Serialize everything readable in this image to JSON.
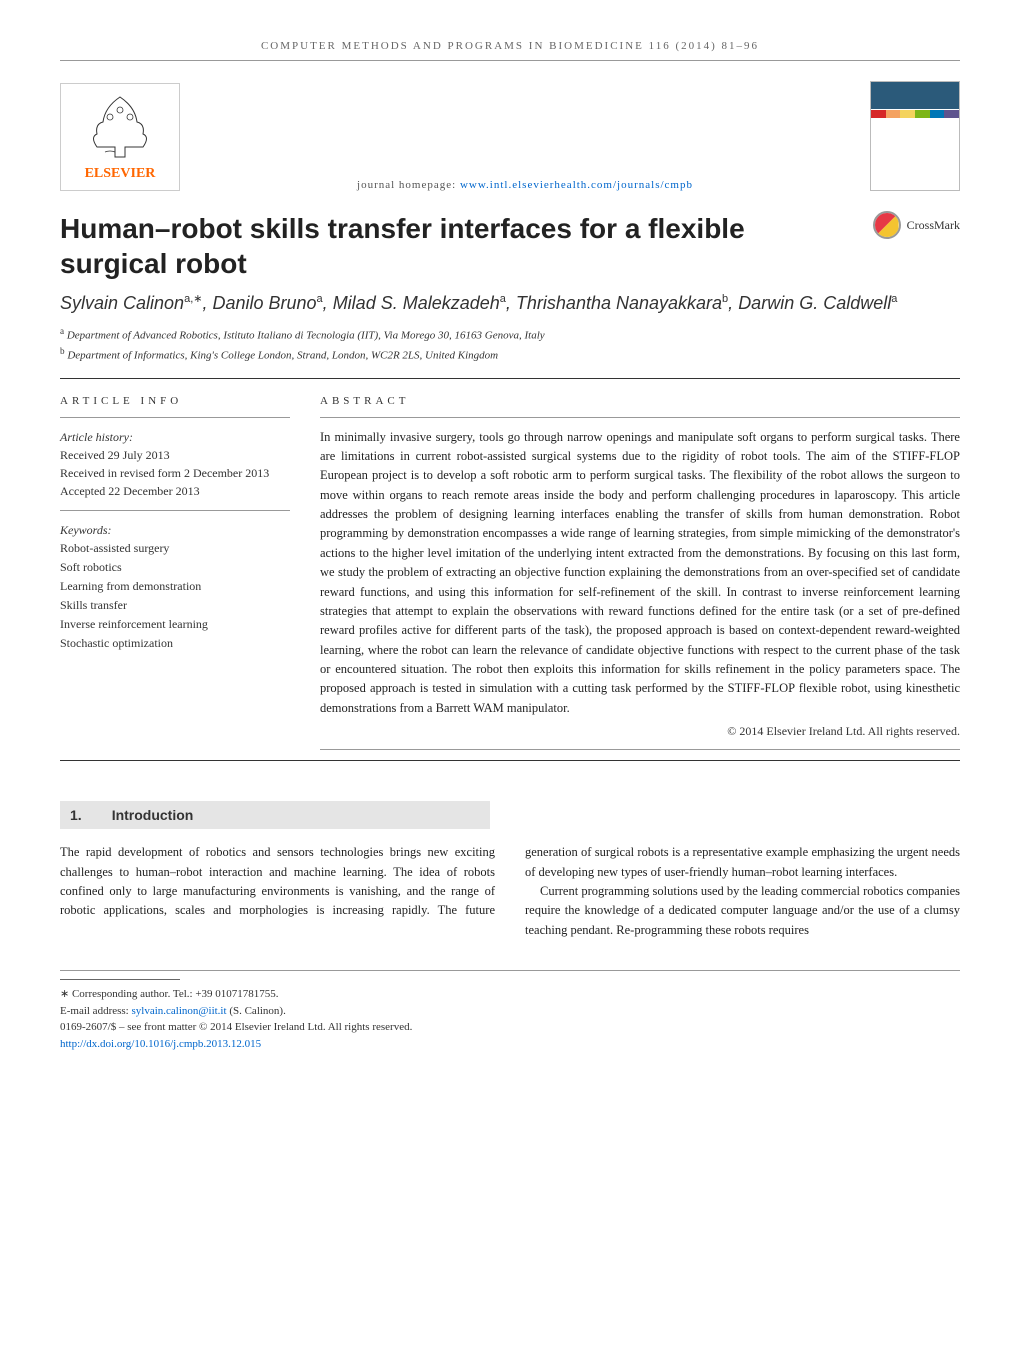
{
  "headerBar": "COMPUTER METHODS AND PROGRAMS IN BIOMEDICINE 116 (2014) 81–96",
  "publisher": {
    "name": "ELSEVIER",
    "color": "#ff6600"
  },
  "homepage": {
    "label": "journal homepage: ",
    "url": "www.intl.elsevierhealth.com/journals/cmpb"
  },
  "journalCover": {
    "stripeColors": [
      "#d62828",
      "#f4a261",
      "#f4d35e",
      "#7cb518",
      "#0077b6",
      "#5e548e"
    ]
  },
  "crossmark": "CrossMark",
  "title": "Human–robot skills transfer interfaces for a flexible surgical robot",
  "authors": [
    {
      "name": "Sylvain Calinon",
      "aff": "a,",
      "corr": "∗"
    },
    {
      "name": "Danilo Bruno",
      "aff": "a"
    },
    {
      "name": "Milad S. Malekzadeh",
      "aff": "a"
    },
    {
      "name": "Thrishantha Nanayakkara",
      "aff": "b"
    },
    {
      "name": "Darwin G. Caldwell",
      "aff": "a"
    }
  ],
  "affiliations": [
    {
      "key": "a",
      "text": "Department of Advanced Robotics, Istituto Italiano di Tecnologia (IIT), Via Morego 30, 16163 Genova, Italy"
    },
    {
      "key": "b",
      "text": "Department of Informatics, King's College London, Strand, London, WC2R 2LS, United Kingdom"
    }
  ],
  "articleInfo": {
    "heading": "ARTICLE INFO",
    "historyLabel": "Article history:",
    "history": [
      "Received 29 July 2013",
      "Received in revised form 2 December 2013",
      "Accepted 22 December 2013"
    ],
    "keywordsLabel": "Keywords:",
    "keywords": [
      "Robot-assisted surgery",
      "Soft robotics",
      "Learning from demonstration",
      "Skills transfer",
      "Inverse reinforcement learning",
      "Stochastic optimization"
    ]
  },
  "abstract": {
    "heading": "ABSTRACT",
    "text": "In minimally invasive surgery, tools go through narrow openings and manipulate soft organs to perform surgical tasks. There are limitations in current robot-assisted surgical systems due to the rigidity of robot tools. The aim of the STIFF-FLOP European project is to develop a soft robotic arm to perform surgical tasks. The flexibility of the robot allows the surgeon to move within organs to reach remote areas inside the body and perform challenging procedures in laparoscopy. This article addresses the problem of designing learning interfaces enabling the transfer of skills from human demonstration. Robot programming by demonstration encompasses a wide range of learning strategies, from simple mimicking of the demonstrator's actions to the higher level imitation of the underlying intent extracted from the demonstrations. By focusing on this last form, we study the problem of extracting an objective function explaining the demonstrations from an over-specified set of candidate reward functions, and using this information for self-refinement of the skill. In contrast to inverse reinforcement learning strategies that attempt to explain the observations with reward functions defined for the entire task (or a set of pre-defined reward profiles active for different parts of the task), the proposed approach is based on context-dependent reward-weighted learning, where the robot can learn the relevance of candidate objective functions with respect to the current phase of the task or encountered situation. The robot then exploits this information for skills refinement in the policy parameters space. The proposed approach is tested in simulation with a cutting task performed by the STIFF-FLOP flexible robot, using kinesthetic demonstrations from a Barrett WAM manipulator.",
    "copyright": "© 2014 Elsevier Ireland Ltd. All rights reserved."
  },
  "intro": {
    "number": "1.",
    "heading": "Introduction",
    "p1": "The rapid development of robotics and sensors technologies brings new exciting challenges to human–robot interaction and machine learning. The idea of robots confined only to large manufacturing environments is vanishing, and the range of robotic applications, scales and morphologies is increasing rapidly. The future generation of surgical robots is a representative example emphasizing the urgent needs of developing new types of user-friendly human–robot learning interfaces.",
    "p2": "Current programming solutions used by the leading commercial robotics companies require the knowledge of a dedicated computer language and/or the use of a clumsy teaching pendant. Re-programming these robots requires"
  },
  "footer": {
    "corresponding": "∗ Corresponding author. Tel.: +39 01071781755.",
    "emailLabel": "E-mail address: ",
    "email": "sylvain.calinon@iit.it",
    "emailName": " (S. Calinon).",
    "frontMatter": "0169-2607/$ – see front matter © 2014 Elsevier Ireland Ltd. All rights reserved.",
    "doi": "http://dx.doi.org/10.1016/j.cmpb.2013.12.015"
  },
  "colors": {
    "link": "#0066cc",
    "accent": "#ff6600",
    "rule": "#333333",
    "grayBg": "#e5e5e5"
  }
}
